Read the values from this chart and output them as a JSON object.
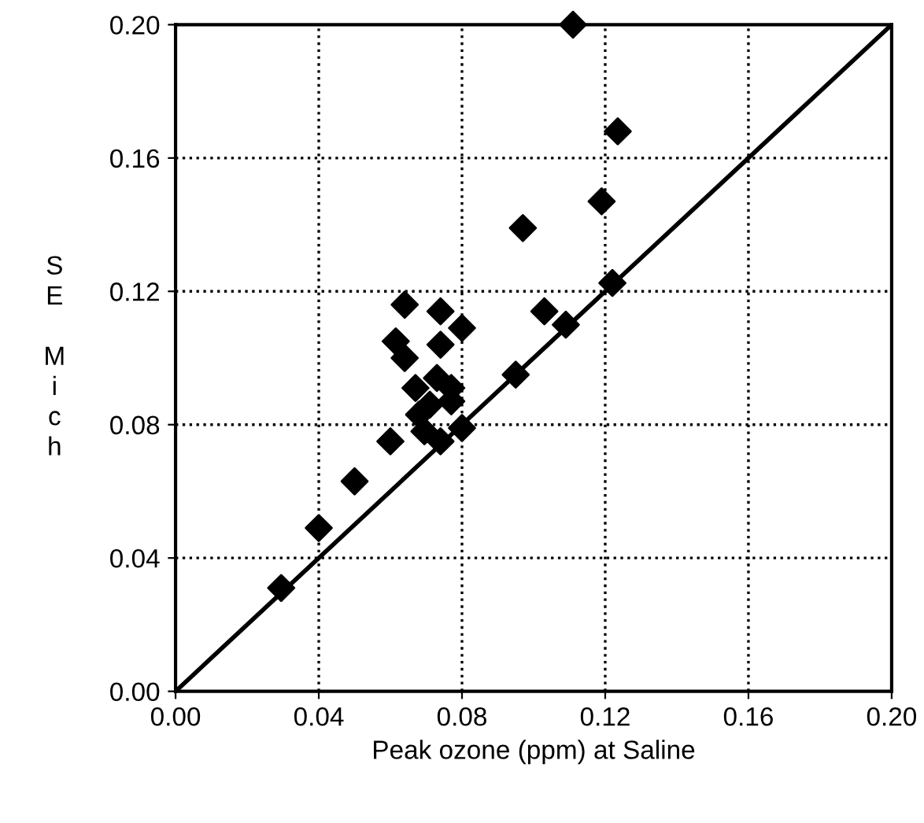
{
  "chart_data": {
    "type": "scatter",
    "xlabel": "Peak ozone (ppm) at Saline",
    "ylabel": "SE Mich",
    "series": [
      {
        "color": "#000000",
        "marker": "diamond",
        "x": [
          0.0295,
          0.04,
          0.05,
          0.06,
          0.074,
          0.08,
          0.0695,
          0.068,
          0.077,
          0.071,
          0.067,
          0.077,
          0.073,
          0.064,
          0.0615,
          0.074,
          0.08,
          0.064,
          0.074,
          0.095,
          0.103,
          0.097,
          0.111,
          0.119,
          0.122,
          0.109,
          0.1235
        ],
        "values": [
          0.031,
          0.049,
          0.063,
          0.075,
          0.075,
          0.079,
          0.078,
          0.083,
          0.087,
          0.086,
          0.091,
          0.091,
          0.094,
          0.1,
          0.105,
          0.104,
          0.109,
          0.116,
          0.114,
          0.095,
          0.114,
          0.139,
          0.2,
          0.147,
          0.1225,
          0.11,
          0.168
        ]
      },
      {
        "type": "line",
        "color": "#000000",
        "marker": "none",
        "line_style": "solid",
        "x": [
          0.0,
          0.2
        ],
        "values": [
          0.0,
          0.2
        ]
      }
    ],
    "xlim": [
      0.0,
      0.2
    ],
    "ylim": [
      0.0,
      0.2
    ],
    "xticks": [
      {
        "value": 0.0,
        "label": "0.00"
      },
      {
        "value": 0.04,
        "label": "0.04"
      },
      {
        "value": 0.08,
        "label": "0.08"
      },
      {
        "value": 0.12,
        "label": "0.12"
      },
      {
        "value": 0.16,
        "label": "0.16"
      },
      {
        "value": 0.2,
        "label": "0.20"
      }
    ],
    "yticks": [
      {
        "value": 0.0,
        "label": "0.00"
      },
      {
        "value": 0.04,
        "label": "0.04"
      },
      {
        "value": 0.08,
        "label": "0.08"
      },
      {
        "value": 0.12,
        "label": "0.12"
      },
      {
        "value": 0.16,
        "label": "0.16"
      },
      {
        "value": 0.2,
        "label": "0.20"
      }
    ],
    "grid": true
  }
}
